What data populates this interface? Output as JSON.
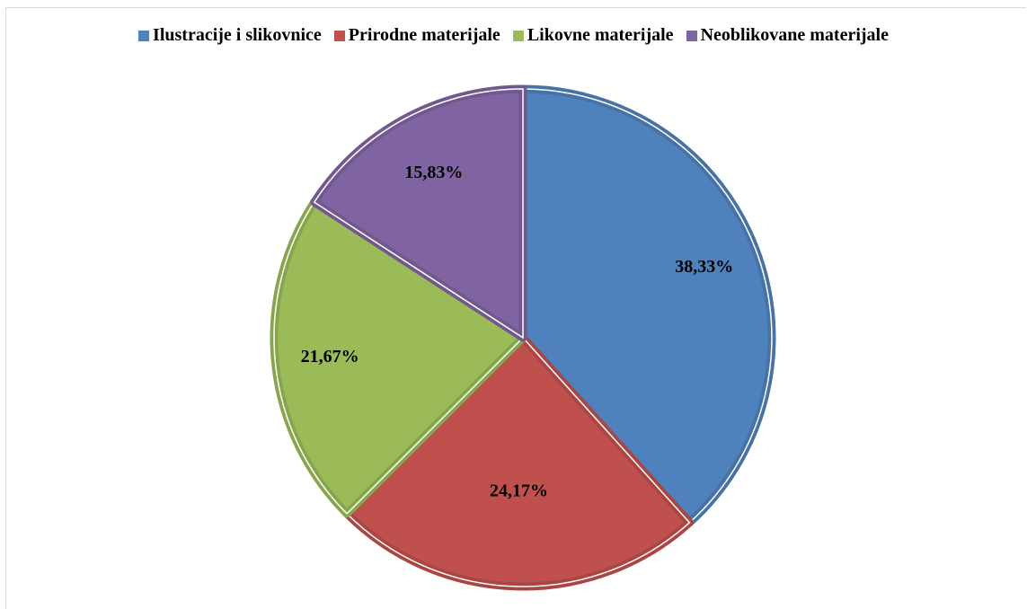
{
  "chart_data": {
    "type": "pie",
    "categories": [
      "Ilustracije i slikovnice",
      "Prirodne materijale",
      "Likovne materijale",
      "Neoblikovane materijale"
    ],
    "values": [
      38.33,
      24.17,
      21.67,
      15.83
    ],
    "value_labels": [
      "38,33%",
      "24,17%",
      "21,67%",
      "15,83%"
    ],
    "colors": [
      "#4f81bd",
      "#c0504d",
      "#9bbb59",
      "#8064a2"
    ],
    "legend_position": "top",
    "title": ""
  }
}
